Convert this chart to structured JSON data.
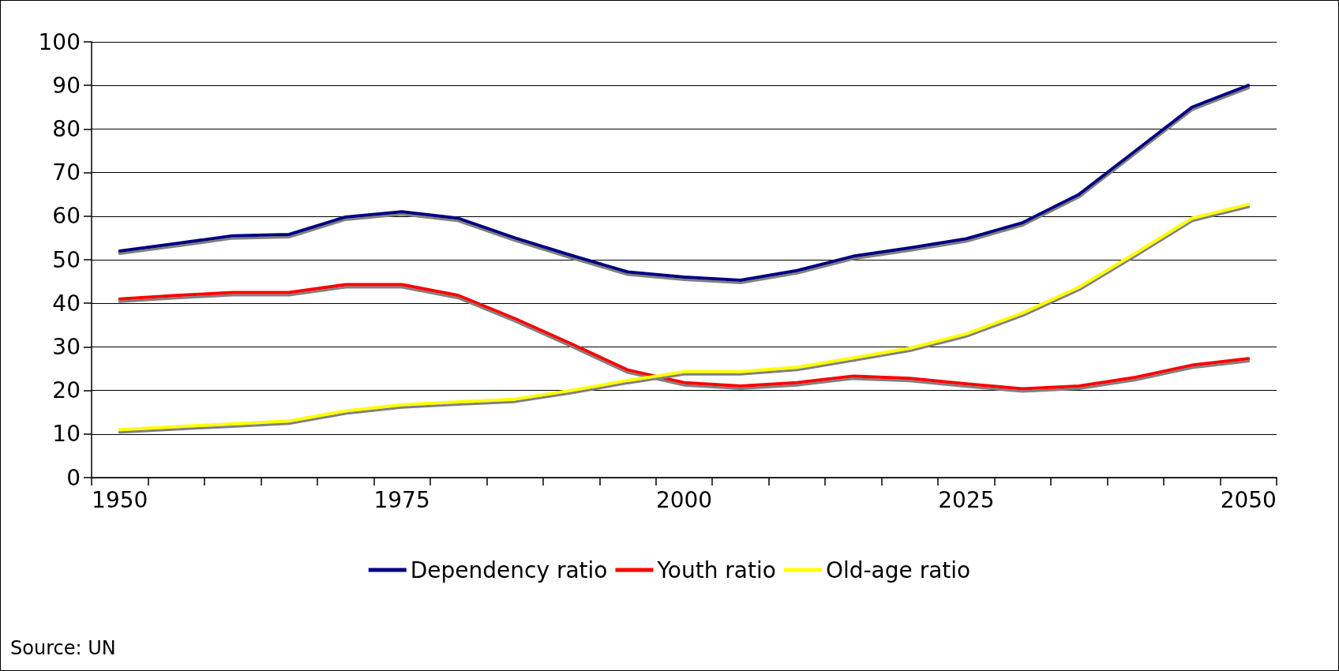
{
  "chart_data": {
    "type": "line",
    "categories": [
      "1950",
      null,
      null,
      null,
      null,
      "1975",
      null,
      null,
      null,
      null,
      "2000",
      null,
      null,
      null,
      null,
      "2025",
      null,
      null,
      null,
      null,
      "2050"
    ],
    "series": [
      {
        "name": "Dependency ratio",
        "color": "#000080",
        "values": [
          52,
          53.7,
          55.5,
          55.8,
          59.8,
          61,
          59.5,
          55,
          51,
          47.2,
          46,
          45.3,
          47.5,
          50.8,
          52.7,
          54.8,
          58.5,
          65,
          75,
          85,
          90
        ]
      },
      {
        "name": "Youth ratio",
        "color": "#ff0000",
        "values": [
          41,
          41.8,
          42.5,
          42.5,
          44.3,
          44.3,
          41.8,
          36.5,
          30.7,
          24.7,
          21.8,
          21,
          21.8,
          23.3,
          22.8,
          21.5,
          20.4,
          21,
          23,
          25.8,
          27.3
        ]
      },
      {
        "name": "Old-age ratio",
        "color": "#ffff00",
        "values": [
          11,
          11.7,
          12.3,
          13,
          15.3,
          16.7,
          17.4,
          18,
          20,
          22.3,
          24.3,
          24.3,
          25.3,
          27.5,
          29.7,
          33,
          37.8,
          43.7,
          51.5,
          59.5,
          62.7
        ]
      }
    ],
    "ylim": [
      0,
      100
    ],
    "yticks": [
      0,
      10,
      20,
      30,
      40,
      50,
      60,
      70,
      80,
      90,
      100
    ],
    "grid": "y",
    "legend": "bottom",
    "marker": "none",
    "line_style": "solid",
    "annotations": [
      "Source: UN"
    ]
  }
}
